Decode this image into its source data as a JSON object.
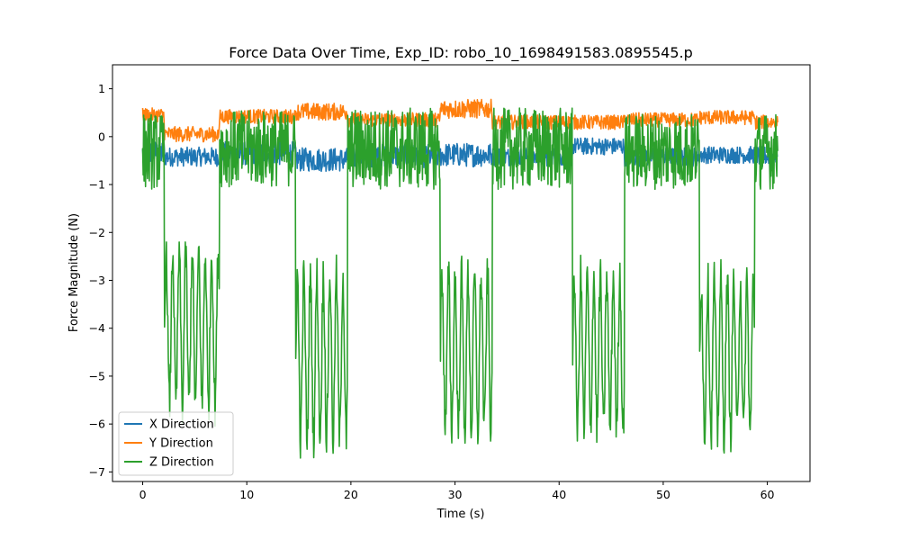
{
  "chart_data": {
    "type": "line",
    "title": "Force Data Over Time, Exp_ID: robo_10_1698491583.0895545.p",
    "xlabel": "Time (s)",
    "ylabel": "Force Magnitude (N)",
    "xlim": [
      -2.9,
      64.1
    ],
    "ylim": [
      -7.2,
      1.5
    ],
    "x_ticks": [
      0,
      10,
      20,
      30,
      40,
      50,
      60
    ],
    "x_tick_labels": [
      "0",
      "10",
      "20",
      "30",
      "40",
      "50",
      "60"
    ],
    "y_ticks": [
      1,
      0,
      -1,
      -2,
      -3,
      -4,
      -5,
      -6,
      -7
    ],
    "y_tick_labels": [
      "1",
      "0",
      "−1",
      "−2",
      "−3",
      "−4",
      "−5",
      "−6",
      "−7"
    ],
    "grid": false,
    "legend_position": "lower-left",
    "x_range": [
      0,
      61
    ],
    "series": [
      {
        "name": "X Direction",
        "color": "#1f77b4",
        "segments": [
          {
            "start": 0,
            "end": 2.1,
            "mean": -0.35,
            "noise": 0.28
          },
          {
            "start": 2.1,
            "end": 7.4,
            "mean": -0.42,
            "noise": 0.2
          },
          {
            "start": 7.4,
            "end": 14.7,
            "mean": -0.35,
            "noise": 0.25
          },
          {
            "start": 14.7,
            "end": 19.7,
            "mean": -0.48,
            "noise": 0.25
          },
          {
            "start": 19.7,
            "end": 28.6,
            "mean": -0.4,
            "noise": 0.25
          },
          {
            "start": 28.6,
            "end": 33.6,
            "mean": -0.38,
            "noise": 0.25
          },
          {
            "start": 33.6,
            "end": 41.3,
            "mean": -0.42,
            "noise": 0.2
          },
          {
            "start": 41.3,
            "end": 46.3,
            "mean": -0.2,
            "noise": 0.18
          },
          {
            "start": 46.3,
            "end": 53.5,
            "mean": -0.42,
            "noise": 0.2
          },
          {
            "start": 53.5,
            "end": 58.8,
            "mean": -0.38,
            "noise": 0.18
          },
          {
            "start": 58.8,
            "end": 61,
            "mean": -0.4,
            "noise": 0.2
          }
        ]
      },
      {
        "name": "Y Direction",
        "color": "#ff7f0e",
        "segments": [
          {
            "start": 0,
            "end": 2.1,
            "mean": 0.45,
            "noise": 0.15
          },
          {
            "start": 2.1,
            "end": 7.4,
            "mean": 0.05,
            "noise": 0.16
          },
          {
            "start": 7.4,
            "end": 14.7,
            "mean": 0.42,
            "noise": 0.15
          },
          {
            "start": 14.7,
            "end": 19.7,
            "mean": 0.52,
            "noise": 0.18
          },
          {
            "start": 19.7,
            "end": 28.6,
            "mean": 0.35,
            "noise": 0.15
          },
          {
            "start": 28.6,
            "end": 33.6,
            "mean": 0.58,
            "noise": 0.2
          },
          {
            "start": 33.6,
            "end": 41.3,
            "mean": 0.3,
            "noise": 0.15
          },
          {
            "start": 41.3,
            "end": 46.3,
            "mean": 0.3,
            "noise": 0.15
          },
          {
            "start": 46.3,
            "end": 53.5,
            "mean": 0.35,
            "noise": 0.15
          },
          {
            "start": 53.5,
            "end": 58.8,
            "mean": 0.4,
            "noise": 0.15
          },
          {
            "start": 58.8,
            "end": 61,
            "mean": 0.3,
            "noise": 0.15
          }
        ]
      },
      {
        "name": "Z Direction",
        "color": "#2ca02c",
        "segments": [
          {
            "start": 0,
            "end": 2.1,
            "mean": -0.3,
            "noise": 0.8
          },
          {
            "start": 2.1,
            "end": 7.4,
            "mean": -4.0,
            "noise": 1.6
          },
          {
            "start": 7.4,
            "end": 14.7,
            "mean": -0.25,
            "noise": 0.8
          },
          {
            "start": 14.7,
            "end": 19.7,
            "mean": -4.6,
            "noise": 1.7
          },
          {
            "start": 19.7,
            "end": 28.6,
            "mean": -0.25,
            "noise": 0.85
          },
          {
            "start": 28.6,
            "end": 33.6,
            "mean": -4.5,
            "noise": 1.6
          },
          {
            "start": 33.6,
            "end": 41.3,
            "mean": -0.25,
            "noise": 0.85
          },
          {
            "start": 41.3,
            "end": 46.3,
            "mean": -4.5,
            "noise": 1.6
          },
          {
            "start": 46.3,
            "end": 53.5,
            "mean": -0.3,
            "noise": 0.8
          },
          {
            "start": 53.5,
            "end": 58.8,
            "mean": -4.6,
            "noise": 1.6
          },
          {
            "start": 58.8,
            "end": 61,
            "mean": -0.3,
            "noise": 0.8
          }
        ]
      }
    ]
  }
}
